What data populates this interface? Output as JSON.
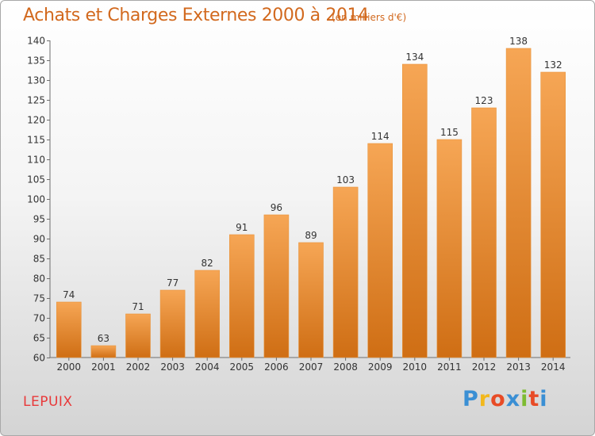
{
  "title": "Achats et Charges Externes 2000 à 2014",
  "subtitle": "(en milliers d'€)",
  "place": "LEPUIX",
  "logo": {
    "letters": [
      {
        "ch": "P",
        "color": "#3a8fd4"
      },
      {
        "ch": "r",
        "color": "#f2b81d"
      },
      {
        "ch": "o",
        "color": "#e84b26"
      },
      {
        "ch": "x",
        "color": "#3a8fd4"
      },
      {
        "ch": "i",
        "color": "#7dbb32"
      },
      {
        "ch": "t",
        "color": "#e84b26"
      },
      {
        "ch": "i",
        "color": "#3a8fd4"
      }
    ]
  },
  "colors": {
    "bar_top": "#f6a655",
    "bar_bottom": "#cf6e14",
    "title": "#d2691e",
    "place": "#e8393a"
  },
  "chart_data": {
    "type": "bar",
    "title": "Achats et Charges Externes 2000 à 2014",
    "subtitle": "(en milliers d'€)",
    "xlabel": "",
    "ylabel": "",
    "categories": [
      "2000",
      "2001",
      "2002",
      "2003",
      "2004",
      "2005",
      "2006",
      "2007",
      "2008",
      "2009",
      "2010",
      "2011",
      "2012",
      "2013",
      "2014"
    ],
    "values": [
      74,
      63,
      71,
      77,
      82,
      91,
      96,
      89,
      103,
      114,
      134,
      115,
      123,
      138,
      132
    ],
    "ylim": [
      60,
      140
    ],
    "yticks": [
      60,
      65,
      70,
      75,
      80,
      85,
      90,
      95,
      100,
      105,
      110,
      115,
      120,
      125,
      130,
      135,
      140
    ],
    "grid": false,
    "data_labels": true
  }
}
